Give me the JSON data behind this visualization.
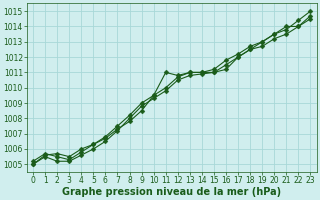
{
  "xlabel": "Graphe pression niveau de la mer (hPa)",
  "ylim": [
    1004.5,
    1015.5
  ],
  "xlim": [
    -0.5,
    23.5
  ],
  "yticks": [
    1005,
    1006,
    1007,
    1008,
    1009,
    1010,
    1011,
    1012,
    1013,
    1014,
    1015
  ],
  "xticks": [
    0,
    1,
    2,
    3,
    4,
    5,
    6,
    7,
    8,
    9,
    10,
    11,
    12,
    13,
    14,
    15,
    16,
    17,
    18,
    19,
    20,
    21,
    22,
    23
  ],
  "background_color": "#d0eeee",
  "grid_color": "#a8d8d8",
  "line_color": "#1a5c1a",
  "line1": [
    1005.2,
    1005.7,
    1005.5,
    1005.3,
    1005.8,
    1006.3,
    1006.7,
    1007.3,
    1007.8,
    1008.5,
    1009.5,
    1011.0,
    1010.8,
    1011.0,
    1011.0,
    1011.0,
    1011.2,
    1012.0,
    1012.5,
    1012.7,
    1013.2,
    1013.5,
    1014.0,
    1014.7
  ],
  "line2": [
    1005.0,
    1005.6,
    1005.7,
    1005.5,
    1006.0,
    1006.3,
    1006.8,
    1007.5,
    1008.2,
    1009.0,
    1009.5,
    1010.0,
    1010.7,
    1011.0,
    1011.0,
    1011.2,
    1011.8,
    1012.2,
    1012.7,
    1013.0,
    1013.5,
    1013.8,
    1014.4,
    1015.0
  ],
  "line3": [
    1005.0,
    1005.5,
    1005.2,
    1005.2,
    1005.6,
    1006.0,
    1006.5,
    1007.2,
    1008.0,
    1008.8,
    1009.3,
    1009.8,
    1010.5,
    1010.8,
    1010.9,
    1011.0,
    1011.5,
    1012.0,
    1012.5,
    1013.0,
    1013.5,
    1014.0,
    1014.0,
    1014.5
  ],
  "marker": "D",
  "markersize": 2.5,
  "linewidth": 0.8,
  "label_fontsize": 7,
  "tick_fontsize": 5.5,
  "label_fontweight": "bold"
}
